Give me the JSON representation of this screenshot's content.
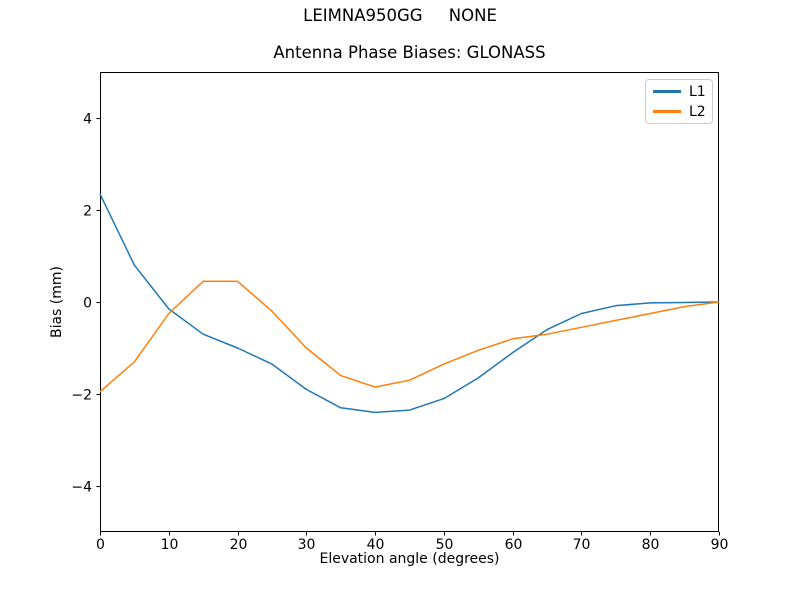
{
  "figure": {
    "suptitle": "LEIMNA950GG     NONE",
    "background_color": "#ffffff",
    "text_color": "#000000",
    "spine_color": "#000000"
  },
  "legend": {
    "position": "upper right",
    "border_color": "#cccccc"
  },
  "chart_data": {
    "type": "line",
    "title": "Antenna Phase Biases: GLONASS",
    "xlabel": "Elevation angle (degrees)",
    "ylabel": "Bias (mm)",
    "xlim": [
      0,
      90
    ],
    "ylim": [
      -5,
      5
    ],
    "xticks": [
      0,
      10,
      20,
      30,
      40,
      50,
      60,
      70,
      80,
      90
    ],
    "yticks": [
      -4,
      -2,
      0,
      2,
      4
    ],
    "grid": false,
    "legend_position": "upper right",
    "x": [
      0,
      5,
      10,
      15,
      20,
      25,
      30,
      35,
      40,
      45,
      50,
      55,
      60,
      65,
      70,
      75,
      80,
      85,
      90
    ],
    "series": [
      {
        "name": "L1",
        "color": "#1f77b4",
        "values": [
          2.35,
          0.8,
          -0.15,
          -0.7,
          -1.0,
          -1.35,
          -1.9,
          -2.3,
          -2.4,
          -2.35,
          -2.1,
          -1.65,
          -1.1,
          -0.6,
          -0.25,
          -0.08,
          -0.02,
          -0.01,
          0.0
        ]
      },
      {
        "name": "L2",
        "color": "#ff7f0e",
        "values": [
          -1.95,
          -1.3,
          -0.25,
          0.45,
          0.45,
          -0.2,
          -1.0,
          -1.6,
          -1.85,
          -1.7,
          -1.35,
          -1.05,
          -0.8,
          -0.7,
          -0.55,
          -0.4,
          -0.25,
          -0.1,
          0.0
        ]
      }
    ]
  }
}
